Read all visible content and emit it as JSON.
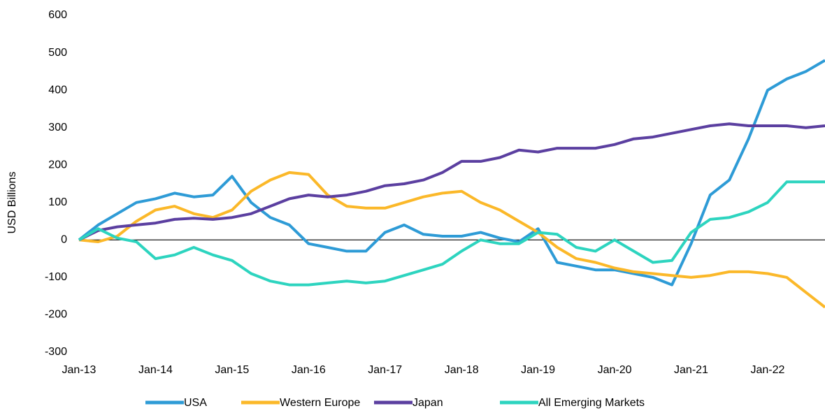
{
  "chart_data": {
    "type": "line",
    "y_label": "USD Billions",
    "x": [
      "Jan-13",
      "Apr-13",
      "Jul-13",
      "Oct-13",
      "Jan-14",
      "Apr-14",
      "Jul-14",
      "Oct-14",
      "Jan-15",
      "Apr-15",
      "Jul-15",
      "Oct-15",
      "Jan-16",
      "Apr-16",
      "Jul-16",
      "Oct-16",
      "Jan-17",
      "Apr-17",
      "Jul-17",
      "Oct-17",
      "Jan-18",
      "Apr-18",
      "Jul-18",
      "Oct-18",
      "Jan-19",
      "Apr-19",
      "Jul-19",
      "Oct-19",
      "Jan-20",
      "Apr-20",
      "Jul-20",
      "Oct-20",
      "Jan-21",
      "Apr-21",
      "Jul-21",
      "Oct-21",
      "Jan-22",
      "Apr-22",
      "Jul-22",
      "Oct-22"
    ],
    "xlim": [
      "Jan-13",
      "Oct-22"
    ],
    "xticks": [
      "Jan-13",
      "Jan-14",
      "Jan-15",
      "Jan-16",
      "Jan-17",
      "Jan-18",
      "Jan-19",
      "Jan-20",
      "Jan-21",
      "Jan-22"
    ],
    "ylim": [
      -300,
      600
    ],
    "yticks": [
      -300,
      -200,
      -100,
      0,
      100,
      200,
      300,
      400,
      500,
      600
    ],
    "zero_line": true,
    "grid": false,
    "legend": "bottom",
    "series": [
      {
        "name": "USA",
        "color": "#2e9bd6",
        "values": [
          0,
          40,
          70,
          100,
          110,
          125,
          115,
          120,
          170,
          100,
          60,
          40,
          -10,
          -20,
          -30,
          -30,
          20,
          40,
          15,
          10,
          10,
          20,
          5,
          -5,
          30,
          -60,
          -70,
          -80,
          -80,
          -90,
          -100,
          -120,
          -10,
          120,
          160,
          270,
          400,
          430,
          450,
          480
        ]
      },
      {
        "name": "Western Europe",
        "color": "#fbb829",
        "values": [
          0,
          -5,
          10,
          50,
          80,
          90,
          70,
          60,
          80,
          130,
          160,
          180,
          175,
          120,
          90,
          85,
          85,
          100,
          115,
          125,
          130,
          100,
          80,
          50,
          20,
          -20,
          -50,
          -60,
          -75,
          -85,
          -90,
          -95,
          -100,
          -95,
          -85,
          -85,
          -90,
          -100,
          -140,
          -180
        ]
      },
      {
        "name": "Japan",
        "color": "#5b3fa0",
        "values": [
          0,
          25,
          35,
          40,
          45,
          55,
          58,
          55,
          60,
          70,
          90,
          110,
          120,
          115,
          120,
          130,
          145,
          150,
          160,
          180,
          210,
          210,
          220,
          240,
          235,
          245,
          245,
          245,
          255,
          270,
          275,
          285,
          295,
          305,
          310,
          305,
          305,
          305,
          300,
          305
        ]
      },
      {
        "name": "All Emerging Markets",
        "color": "#2dd4bf",
        "values": [
          0,
          30,
          5,
          -5,
          -50,
          -40,
          -20,
          -40,
          -55,
          -90,
          -110,
          -120,
          -120,
          -115,
          -110,
          -115,
          -110,
          -95,
          -80,
          -65,
          -30,
          0,
          -10,
          -10,
          20,
          15,
          -20,
          -30,
          0,
          -30,
          -60,
          -55,
          20,
          55,
          60,
          75,
          100,
          155,
          155,
          155
        ]
      }
    ]
  }
}
